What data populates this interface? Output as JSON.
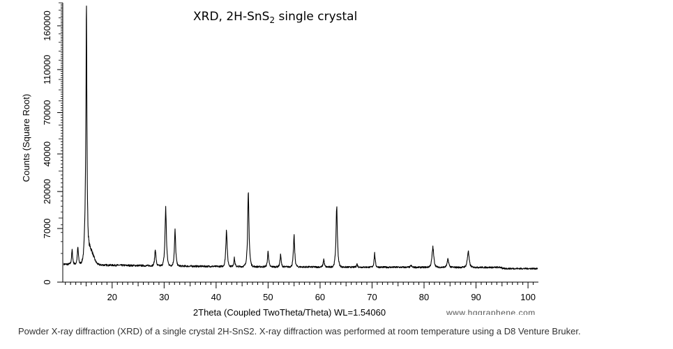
{
  "chart_data": {
    "type": "line",
    "title_main": "XRD, 2H-SnS",
    "title_sub": "2",
    "title_tail": " single crystal",
    "xlabel": "2Theta (Coupled TwoTheta/Theta) WL=1.54060",
    "ylabel": "Counts (Square Root)",
    "x_ticks": [
      20,
      30,
      40,
      50,
      60,
      70,
      80,
      90,
      100
    ],
    "y_ticks": [
      0,
      7000,
      20000,
      40000,
      70000,
      110000,
      160000
    ],
    "xlim": [
      10.5,
      102
    ],
    "ylim": [
      0,
      190000
    ],
    "y_scale": "sqrt",
    "grid": false,
    "series": [
      {
        "peaks": [
          {
            "x": 12.3,
            "y": 2500
          },
          {
            "x": 13.4,
            "y": 3000
          },
          {
            "x": 14.9,
            "y": 16000
          },
          {
            "x": 15.05,
            "y": 190000
          },
          {
            "x": 28.3,
            "y": 2800
          },
          {
            "x": 30.3,
            "y": 14000
          },
          {
            "x": 32.1,
            "y": 6500
          },
          {
            "x": 42.0,
            "y": 7200
          },
          {
            "x": 43.5,
            "y": 1400
          },
          {
            "x": 46.2,
            "y": 19000
          },
          {
            "x": 50.0,
            "y": 2400
          },
          {
            "x": 52.4,
            "y": 1900
          },
          {
            "x": 55.0,
            "y": 5300
          },
          {
            "x": 60.7,
            "y": 1300
          },
          {
            "x": 63.2,
            "y": 15000
          },
          {
            "x": 67.1,
            "y": 800
          },
          {
            "x": 70.5,
            "y": 2000
          },
          {
            "x": 77.5,
            "y": 700
          },
          {
            "x": 81.7,
            "y": 3000
          },
          {
            "x": 84.6,
            "y": 1300
          },
          {
            "x": 88.5,
            "y": 2400
          }
        ]
      }
    ]
  },
  "watermark": "www.hqgraphene.com",
  "caption": "Powder X-ray diffraction (XRD) of a single crystal 2H-SnS2. X-ray diffraction was performed at room temperature using a D8 Venture Bruker."
}
